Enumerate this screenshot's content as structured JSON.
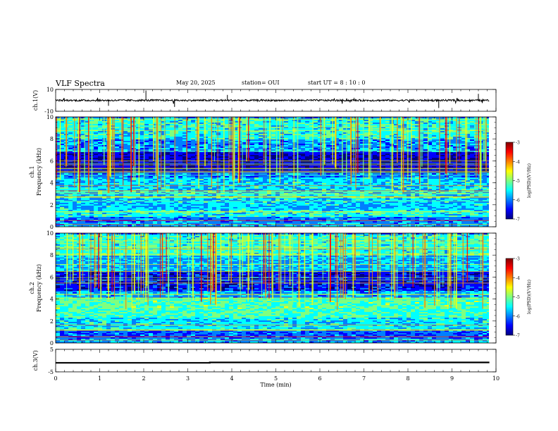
{
  "header": {
    "title": "VLF Spectra",
    "date": "May 20, 2025",
    "station": "station= OUI",
    "start_ut": "start  UT =   8  : 10 : 0"
  },
  "colors": {
    "trace": "#000000",
    "colormap": [
      "#00007f",
      "#0000ff",
      "#007fff",
      "#00ffff",
      "#7fff7f",
      "#ffff00",
      "#ff7f00",
      "#ff0000",
      "#7f0000"
    ]
  },
  "chart_data": [
    {
      "type": "line",
      "panel": "ch1-waveform",
      "ylabel": "ch.1(V)",
      "ylim": [
        -10,
        10
      ],
      "ytick_labels": [
        "10",
        "-10"
      ],
      "xlim": [
        0,
        10
      ],
      "baseline_value": 0,
      "typical_amplitude": 1
    },
    {
      "type": "heatmap",
      "panel": "ch1-spectrogram",
      "ylabel": "ch.1\nFrequency  (kHz)",
      "ylim": [
        0,
        10
      ],
      "ytick_labels": [
        "0",
        "2",
        "4",
        "6",
        "8",
        "10"
      ],
      "xlim": [
        0,
        9.85
      ],
      "colorbar": {
        "label": "log(PSD)(V²/Hz)",
        "range": [
          -7,
          -3
        ],
        "tick_labels": [
          "-3",
          "-4",
          "-5",
          "-6",
          "-7"
        ]
      }
    },
    {
      "type": "heatmap",
      "panel": "ch2-spectrogram",
      "ylabel": "ch.2\nFrequency  (kHz)",
      "ylim": [
        0,
        10
      ],
      "ytick_labels": [
        "0",
        "2",
        "4",
        "6",
        "8",
        "10"
      ],
      "xlim": [
        0,
        9.85
      ],
      "colorbar": {
        "label": "log(PSD)(V²/Hz)",
        "range": [
          -7,
          -3
        ],
        "tick_labels": [
          "-3",
          "-4",
          "-5",
          "-6",
          "-7"
        ]
      }
    },
    {
      "type": "line",
      "panel": "ch3-trace",
      "ylabel": "ch.3(V)",
      "ylim": [
        -5,
        5
      ],
      "ytick_labels": [
        "5",
        "-5"
      ],
      "xlim": [
        0,
        10
      ],
      "x": [
        0,
        3.5,
        3.5,
        9.85
      ],
      "y": [
        -1.0,
        -1.0,
        -0.8,
        -0.8
      ]
    }
  ],
  "xaxis": {
    "label": "Time  (min)",
    "tick_labels": [
      "0",
      "1",
      "2",
      "3",
      "4",
      "5",
      "6",
      "7",
      "8",
      "9",
      "10"
    ]
  }
}
